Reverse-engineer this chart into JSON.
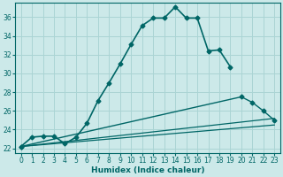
{
  "xlabel": "Humidex (Indice chaleur)",
  "background_color": "#cce9e9",
  "grid_color": "#aad4d4",
  "line_color": "#006666",
  "xlim": [
    -0.5,
    23.5
  ],
  "ylim": [
    21.5,
    37.5
  ],
  "yticks": [
    22,
    24,
    26,
    28,
    30,
    32,
    34,
    36
  ],
  "xticks": [
    0,
    1,
    2,
    3,
    4,
    5,
    6,
    7,
    8,
    9,
    10,
    11,
    12,
    13,
    14,
    15,
    16,
    17,
    18,
    19,
    20,
    21,
    22,
    23
  ],
  "xtick_labels": [
    "0",
    "1",
    "2",
    "3",
    "4",
    "5",
    "6",
    "7",
    "8",
    "9",
    "10",
    "11",
    "12",
    "13",
    "14",
    "15",
    "16",
    "17",
    "18",
    "19",
    "20",
    "21",
    "22",
    "23"
  ],
  "series1_x": [
    0,
    1,
    2,
    3,
    4,
    5,
    6,
    7,
    8,
    9,
    10,
    11,
    12,
    13,
    14,
    15,
    16,
    17,
    18,
    19
  ],
  "series1_y": [
    22.2,
    23.2,
    23.3,
    23.3,
    22.5,
    23.2,
    24.7,
    27.1,
    29.0,
    31.0,
    33.1,
    35.1,
    35.9,
    35.9,
    37.1,
    35.9,
    35.9,
    32.4,
    32.5,
    30.7
  ],
  "series2_x": [
    0,
    20,
    21,
    22,
    23
  ],
  "series2_y": [
    22.2,
    27.5,
    26.9,
    26.0,
    25.0
  ],
  "series3_x": [
    0,
    23
  ],
  "series3_y": [
    22.2,
    25.2
  ],
  "series4_x": [
    0,
    23
  ],
  "series4_y": [
    22.2,
    24.5
  ],
  "tick_fontsize": 5.5,
  "label_fontsize": 6.5
}
